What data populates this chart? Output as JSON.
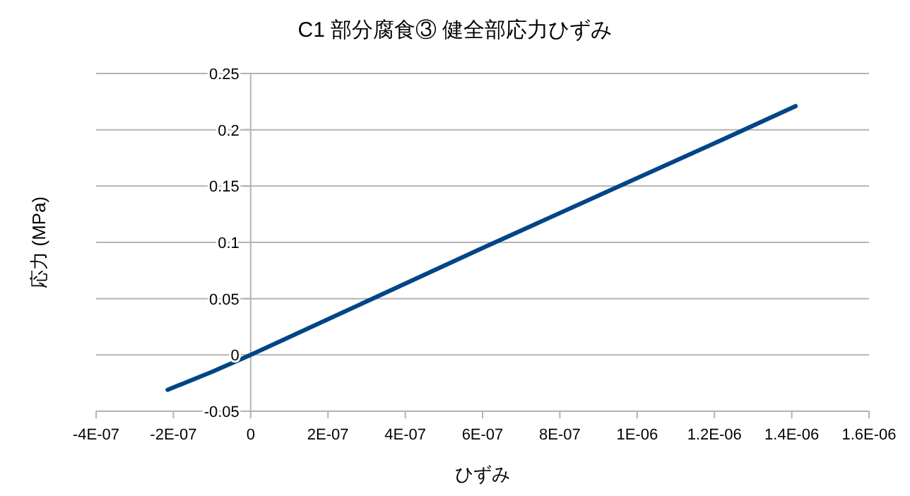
{
  "chart_data": {
    "type": "line",
    "title": "C1 部分腐食③ 健全部応力ひずみ",
    "xlabel": "ひずみ",
    "ylabel": "応力 (MPa)",
    "x": [
      -2.15e-07,
      -1e-07,
      0,
      1.2e-07,
      2.4e-07,
      6e-07,
      9.8e-07,
      1.2e-06,
      1.41e-06
    ],
    "series": [
      {
        "color": "#004586",
        "values": [
          -0.031,
          -0.015,
          0,
          0.019,
          0.038,
          0.095,
          0.154,
          0.188,
          0.221
        ]
      }
    ],
    "xlim": [
      -4e-07,
      1.6e-06
    ],
    "xticks": [
      {
        "value": -4e-07,
        "label": "-4E-07"
      },
      {
        "value": -2e-07,
        "label": "-2E-07"
      },
      0,
      {
        "value": 2e-07,
        "label": "2E-07"
      },
      {
        "value": 4e-07,
        "label": "4E-07"
      },
      {
        "value": 6e-07,
        "label": "6E-07"
      },
      {
        "value": 8e-07,
        "label": "8E-07"
      },
      {
        "value": 1e-06,
        "label": "1E-06"
      },
      {
        "value": 1.2e-06,
        "label": "1.2E-06"
      },
      {
        "value": 1.4e-06,
        "label": "1.4E-06"
      },
      {
        "value": 1.6e-06,
        "label": "1.6E-06"
      }
    ],
    "ylim": [
      -0.05,
      0.25
    ],
    "yticks": [
      -0.05,
      0,
      0.05,
      0.1,
      0.15,
      0.2,
      0.25
    ],
    "grid": "y",
    "marker": "none",
    "line_style": "solid"
  }
}
